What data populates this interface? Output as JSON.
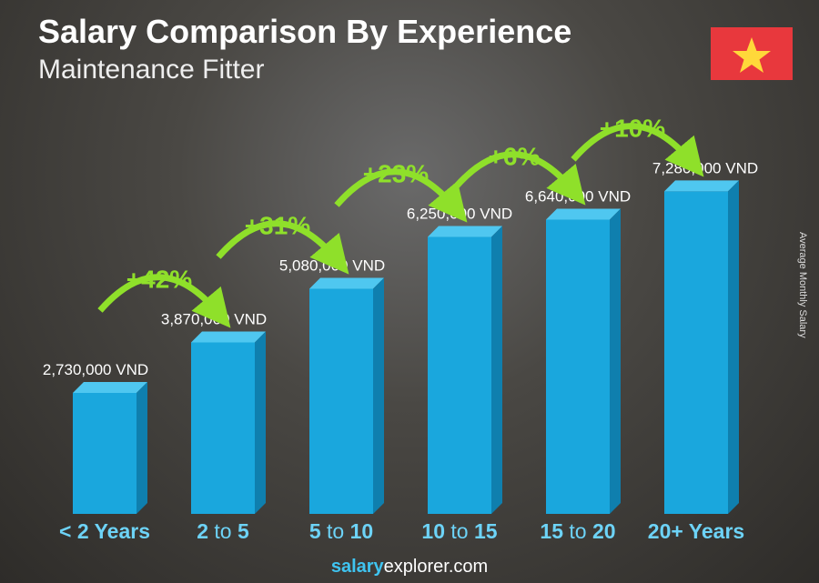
{
  "chart_data": {
    "type": "bar",
    "title": "Salary Comparison By Experience",
    "subtitle": "Maintenance Fitter",
    "ylabel": "Average Monthly Salary",
    "categories": [
      [
        "<",
        " 2 Years",
        ""
      ],
      [
        "2",
        " to ",
        "5"
      ],
      [
        "5",
        " to ",
        "10"
      ],
      [
        "10",
        " to ",
        "15"
      ],
      [
        "15",
        " to ",
        "20"
      ],
      [
        "20+ Years",
        "",
        ""
      ]
    ],
    "values": [
      2730000,
      3870000,
      5080000,
      6250000,
      6640000,
      7280000
    ],
    "value_labels": [
      "2,730,000 VND",
      "3,870,000 VND",
      "5,080,000 VND",
      "6,250,000 VND",
      "6,640,000 VND",
      "7,280,000 VND"
    ],
    "changes": [
      "+42%",
      "+31%",
      "+23%",
      "+6%",
      "+10%"
    ],
    "ylim": [
      0,
      8000000
    ],
    "grid": false,
    "colors": {
      "bar": "#1aa7dd",
      "bar_top": "#4fc7f0",
      "bar_side": "#0f7fae",
      "change": "#8fe02a",
      "category": "#6dd3f7"
    }
  },
  "brand": {
    "a": "salary",
    "b": "explorer",
    ".com": ".com"
  },
  "flag": {
    "country": "Vietnam",
    "icon": "star-icon"
  }
}
